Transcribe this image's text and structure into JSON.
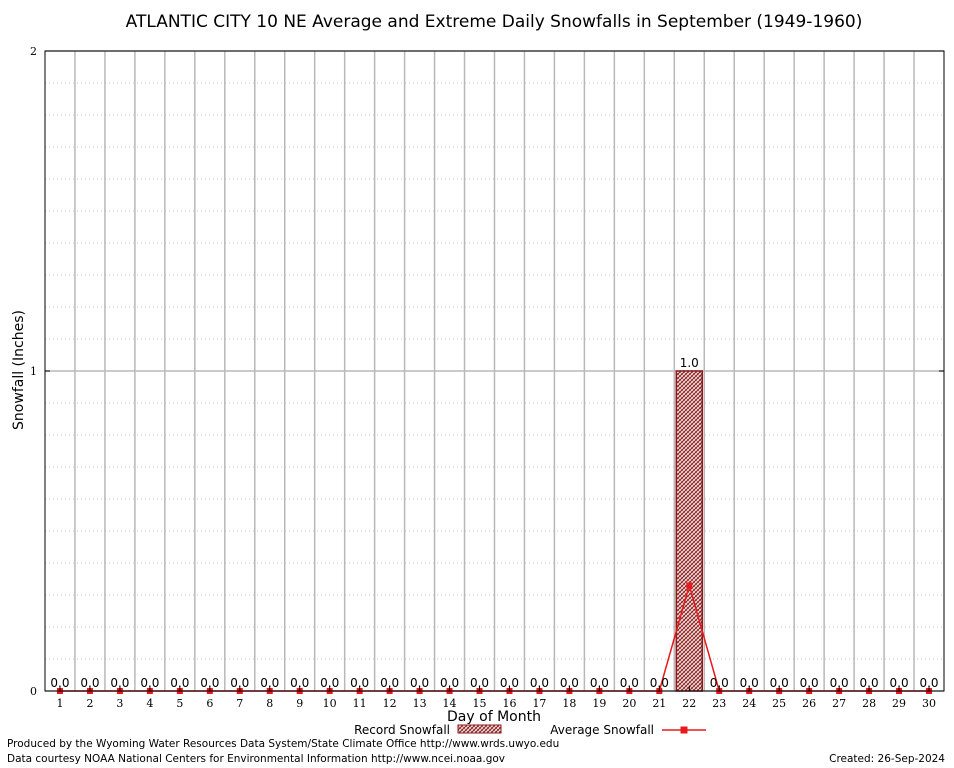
{
  "chart_data": {
    "type": "bar",
    "title": "ATLANTIC CITY 10 NE Average and Extreme Daily Snowfalls in September (1949-1960)",
    "xlabel": "Day of Month",
    "ylabel": "Snowfall (Inches)",
    "ylim": [
      0,
      2
    ],
    "y_ticks": [
      "0",
      "1",
      "2"
    ],
    "grid": true,
    "categories": [
      "1",
      "2",
      "3",
      "4",
      "5",
      "6",
      "7",
      "8",
      "9",
      "10",
      "11",
      "12",
      "13",
      "14",
      "15",
      "16",
      "17",
      "18",
      "19",
      "20",
      "21",
      "22",
      "23",
      "24",
      "25",
      "26",
      "27",
      "28",
      "29",
      "30"
    ],
    "series": [
      {
        "name": "Record Snowfall",
        "type": "bar",
        "color": "#8b1a1a",
        "values": [
          0,
          0,
          0,
          0,
          0,
          0,
          0,
          0,
          0,
          0,
          0,
          0,
          0,
          0,
          0,
          0,
          0,
          0,
          0,
          0,
          0,
          1.0,
          0,
          0,
          0,
          0,
          0,
          0,
          0,
          0
        ],
        "labels": [
          "0.0",
          "0.0",
          "0.0",
          "0.0",
          "0.0",
          "0.0",
          "0.0",
          "0.0",
          "0.0",
          "0.0",
          "0.0",
          "0.0",
          "0.0",
          "0.0",
          "0.0",
          "0.0",
          "0.0",
          "0.0",
          "0.0",
          "0.0",
          "0.0",
          "1.0",
          "0.0",
          "0.0",
          "0.0",
          "0.0",
          "0.0",
          "0.0",
          "0.0",
          "0.0"
        ]
      },
      {
        "name": "Average Snowfall",
        "type": "line",
        "color": "#e8191d",
        "values": [
          0,
          0,
          0,
          0,
          0,
          0,
          0,
          0,
          0,
          0,
          0,
          0,
          0,
          0,
          0,
          0,
          0,
          0,
          0,
          0,
          0,
          0.33,
          0,
          0,
          0,
          0,
          0,
          0,
          0,
          0
        ]
      }
    ],
    "legend": "bottom-center"
  },
  "footer": {
    "produced_by": "Produced by the Wyoming Water Resources Data System/State Climate Office http://www.wrds.uwyo.edu",
    "data_courtesy": "Data courtesy NOAA National Centers for Environmental Information http://www.ncei.noaa.gov",
    "created": "Created: 26-Sep-2024"
  }
}
